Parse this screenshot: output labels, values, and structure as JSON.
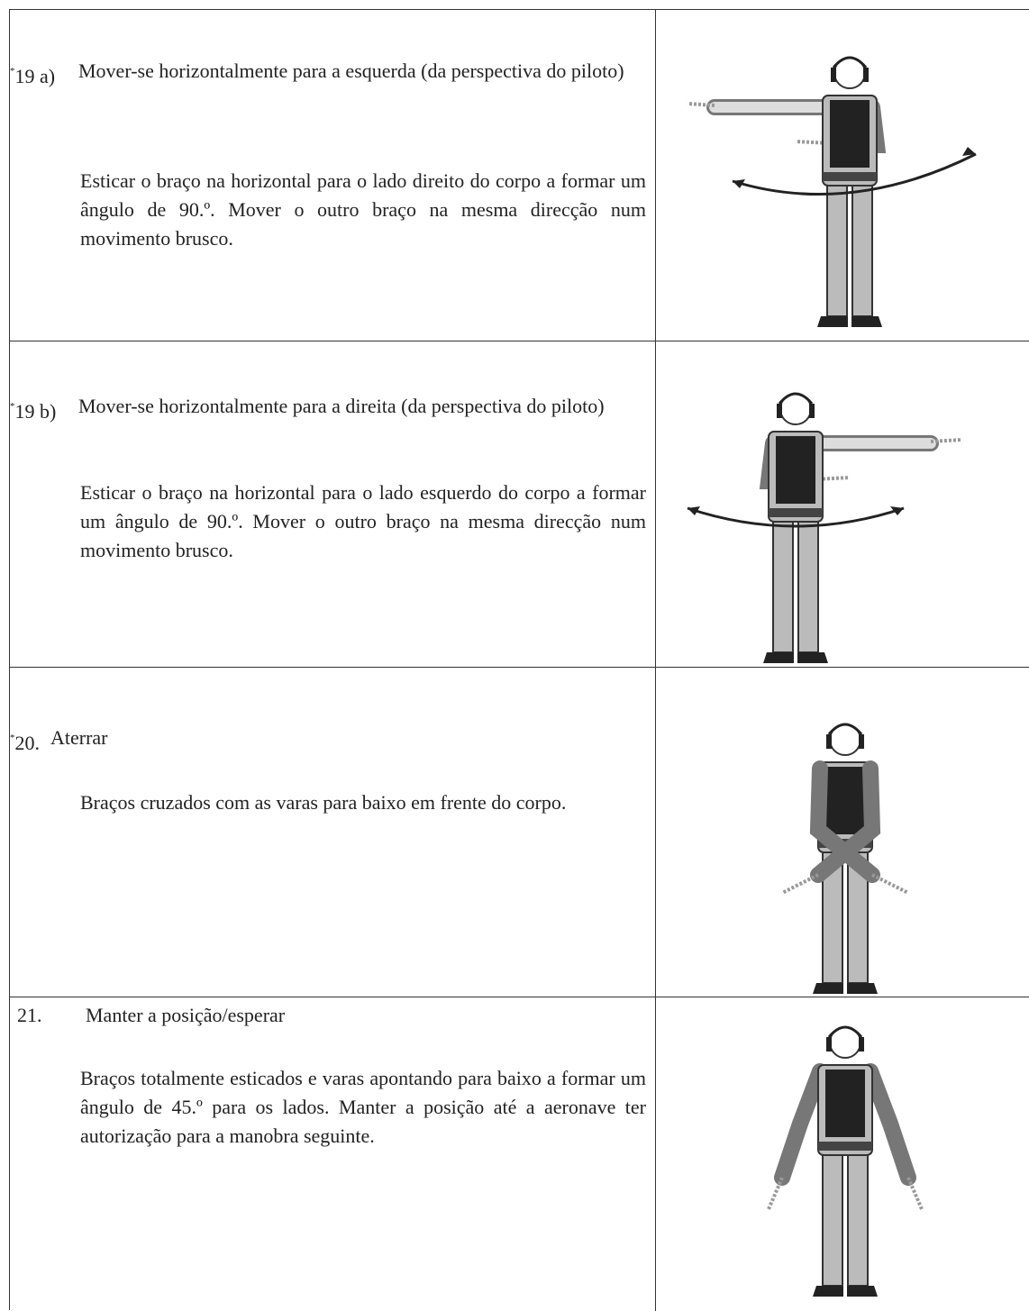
{
  "rows": [
    {
      "marker": "*",
      "number": "19 a)",
      "title": "Mover-se horizontalmente para a esquerda (da perspectiva do piloto)",
      "description": "Esticar o braço na horizontal para o lado direito do corpo a formar um ângulo de 90.º. Mover o outro braço na mesma direcção num movimento brusco."
    },
    {
      "marker": "*",
      "number": "19 b)",
      "title": "Mover-se horizontalmente para a direita (da perspectiva do piloto)",
      "description": "Esticar o braço na horizontal para o lado esquerdo do corpo a formar um ângulo de 90.º. Mover o outro braço na mesma direcção num movimento brusco."
    },
    {
      "marker": "*",
      "number": "20.",
      "title": "Aterrar",
      "description": "Braços cruzados com as varas para baixo em frente do corpo."
    },
    {
      "number": "21.",
      "title": "Manter a posição/esperar",
      "description": "Braços totalmente esticados e varas apontando para baixo a formar um ângulo de 45.º para os lados. Manter a posição até a aeronave ter autorização para a manobra seguinte."
    }
  ]
}
